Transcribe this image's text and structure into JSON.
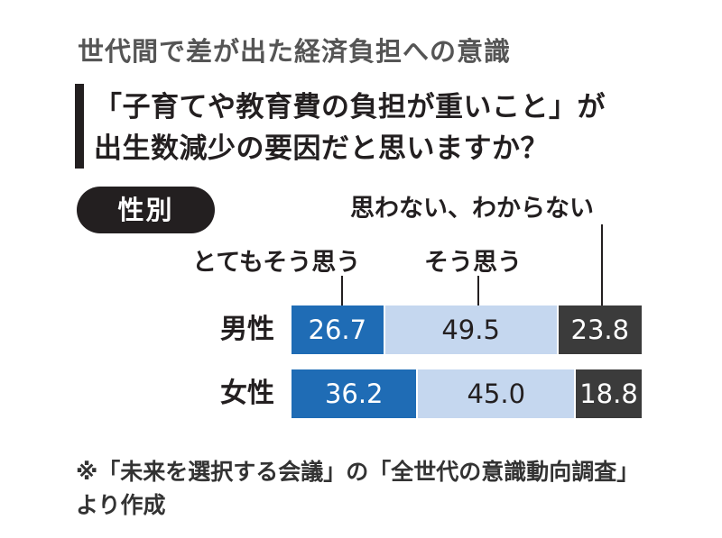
{
  "header": {
    "title": "世代間で差が出た経済負担への意識"
  },
  "question": {
    "line1": "「子育てや教育費の負担が重いこと」が",
    "line2": "出生数減少の要因だと思いますか？"
  },
  "section_label": "性別",
  "note": "※「未来を選択する会議」の「全世代の意識動向調査」より作成",
  "chart_data": {
    "type": "bar",
    "orientation": "horizontal",
    "stacked": true,
    "normalized_percent": true,
    "categories": [
      "男性",
      "女性"
    ],
    "series": [
      {
        "name": "とてもそう思う",
        "values": [
          26.7,
          36.2
        ],
        "value_labels": [
          "26.7",
          "36.2"
        ],
        "color": "#1f6cb5",
        "text_color": "#ffffff"
      },
      {
        "name": "そう思う",
        "values": [
          49.5,
          45.0
        ],
        "value_labels": [
          "49.5",
          "45.0"
        ],
        "color": "#c5d7ef",
        "text_color": "#231f20"
      },
      {
        "name": "思わない、わからない",
        "values": [
          23.8,
          18.8
        ],
        "value_labels": [
          "23.8",
          "18.8"
        ],
        "color": "#3b3b3b",
        "text_color": "#ffffff"
      }
    ],
    "legend_placement": "top (leader lines to first row)",
    "grid": false
  }
}
